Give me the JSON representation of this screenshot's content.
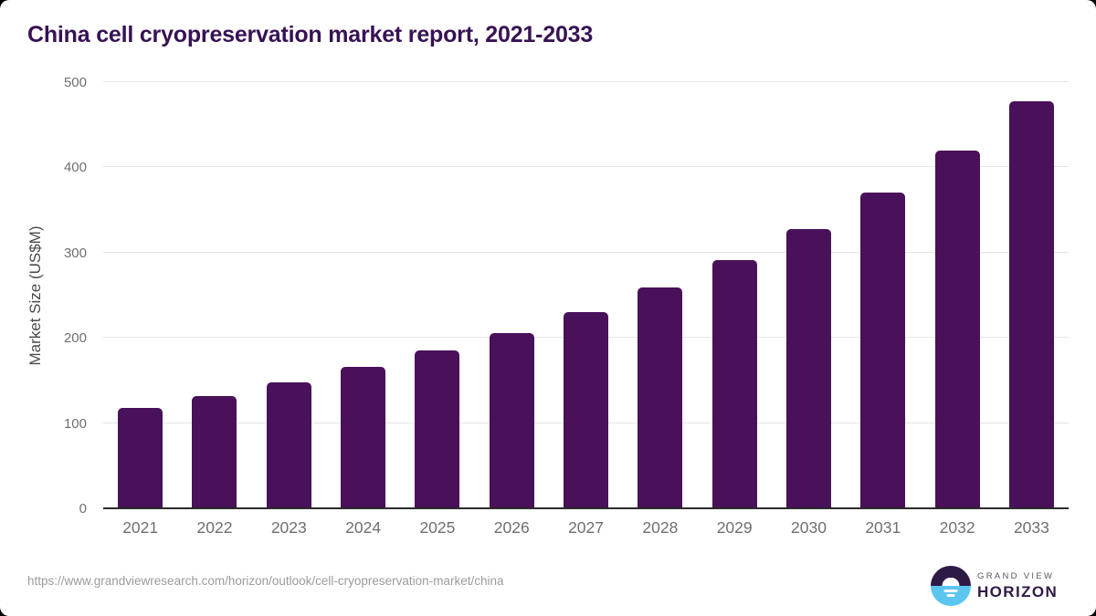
{
  "header": {
    "title": "China cell cryopreservation market report, 2021-2033"
  },
  "chart_data": {
    "type": "bar",
    "title": "China cell cryopreservation market report, 2021-2033",
    "categories": [
      "2021",
      "2022",
      "2023",
      "2024",
      "2025",
      "2026",
      "2027",
      "2028",
      "2029",
      "2030",
      "2031",
      "2032",
      "2033"
    ],
    "values": [
      118,
      132,
      148,
      166,
      185,
      206,
      230,
      259,
      291,
      328,
      371,
      420,
      478
    ],
    "xlabel": "",
    "ylabel": "Market Size (US$M)",
    "ylim": [
      0,
      500
    ],
    "yticks": [
      0,
      100,
      200,
      300,
      400,
      500
    ],
    "grid": true,
    "legend_position": "none",
    "bar_color": "#49115A"
  },
  "footer": {
    "source_url": "https://www.grandviewresearch.com/horizon/outlook/cell-cryopreservation-market/china",
    "logo": {
      "brand_top": "GRAND VIEW",
      "brand_bottom": "HORIZON"
    }
  },
  "colors": {
    "bar": "#49115A",
    "title_text": "#371254",
    "tick_label": "#6F6F6F",
    "axis_title": "#4A4A4A",
    "gridline": "#E5E5E5",
    "axis_line": "#2B2B2B",
    "url_text": "#9B9B9B",
    "logo_dark": "#2E1A47",
    "logo_blue": "#5CC6F1",
    "background": "#FFFFFF"
  }
}
